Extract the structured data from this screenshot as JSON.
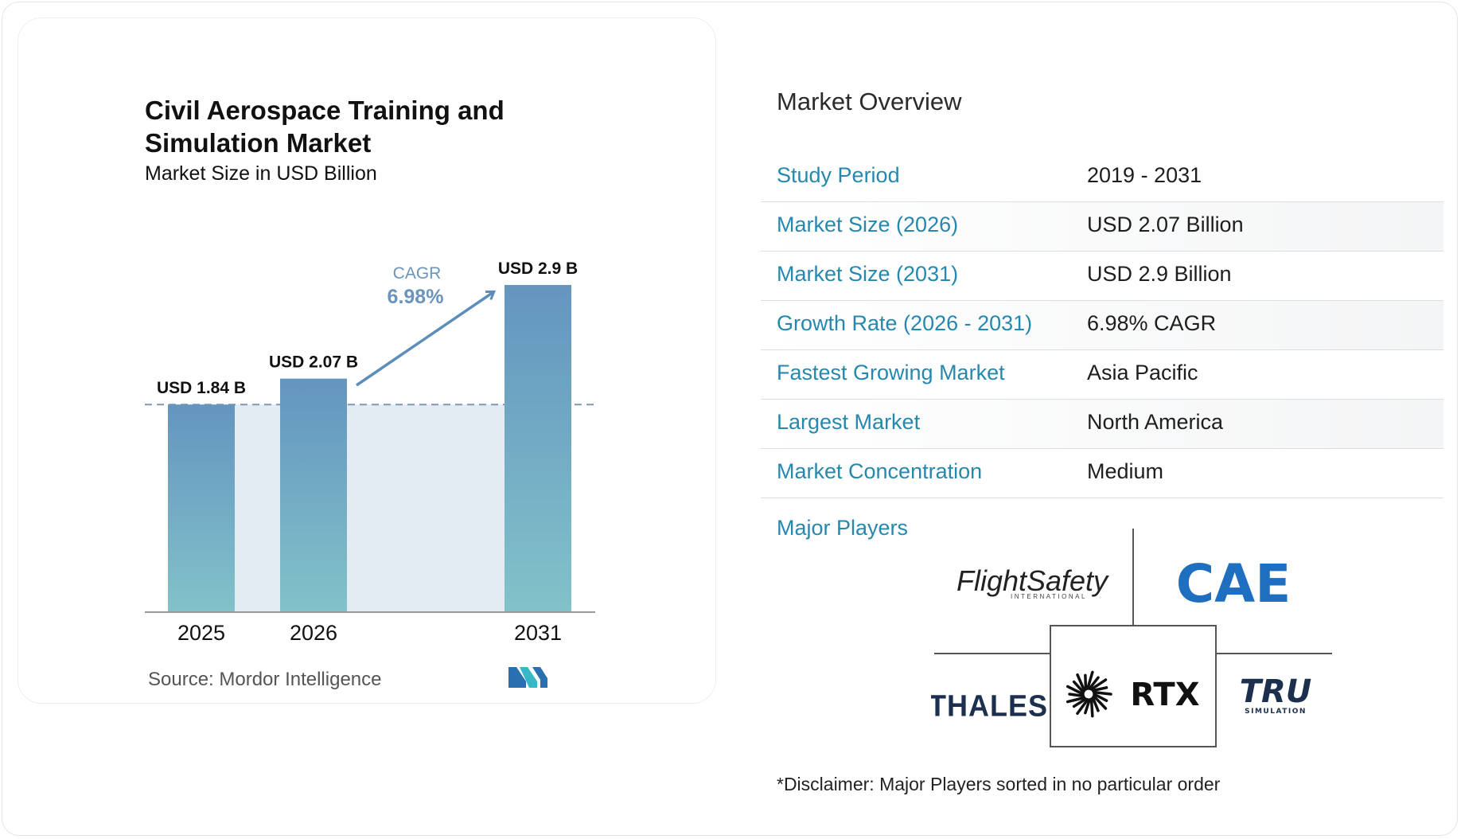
{
  "chart_data": {
    "type": "bar",
    "title": "Civil Aerospace Training and Simulation Market",
    "subtitle": "Market Size in USD Billion",
    "categories": [
      "2025",
      "2026",
      "2031"
    ],
    "values": [
      1.84,
      2.07,
      2.9
    ],
    "value_labels": [
      "USD 1.84 B",
      "USD 2.07 B",
      "USD 2.9 B"
    ],
    "cagr_label": "CAGR",
    "cagr_value": "6.98%",
    "ylim": [
      0,
      2.9
    ],
    "bar_color_top": "#6495bf",
    "bar_color_bottom": "#82c2c9",
    "shade_color": "#e3ebf3"
  },
  "source": "Source:  Mordor Intelligence",
  "overview": {
    "title": "Market Overview",
    "rows": [
      {
        "label": "Study Period",
        "value": "2019 - 2031"
      },
      {
        "label": "Market Size (2026)",
        "value": "USD 2.07 Billion"
      },
      {
        "label": "Market Size (2031)",
        "value": "USD 2.9 Billion"
      },
      {
        "label": "Growth Rate (2026 - 2031)",
        "value": "6.98% CAGR"
      },
      {
        "label": "Fastest Growing Market",
        "value": "Asia Pacific"
      },
      {
        "label": "Largest Market",
        "value": "North America"
      },
      {
        "label": "Market Concentration",
        "value": "Medium"
      }
    ]
  },
  "players": {
    "title": "Major Players",
    "logos": [
      {
        "name": "FlightSafety",
        "sub": "INTERNATIONAL"
      },
      {
        "name": "CAE"
      },
      {
        "name": "THALES"
      },
      {
        "name": "RTX"
      },
      {
        "name": "TRU",
        "sub": "SIMULATION"
      }
    ]
  },
  "disclaimer": "*Disclaimer: Major Players sorted in no particular order",
  "colors": {
    "accent": "#2688ad",
    "cae_blue": "#1e6fbf",
    "navy": "#1d2f4f"
  }
}
